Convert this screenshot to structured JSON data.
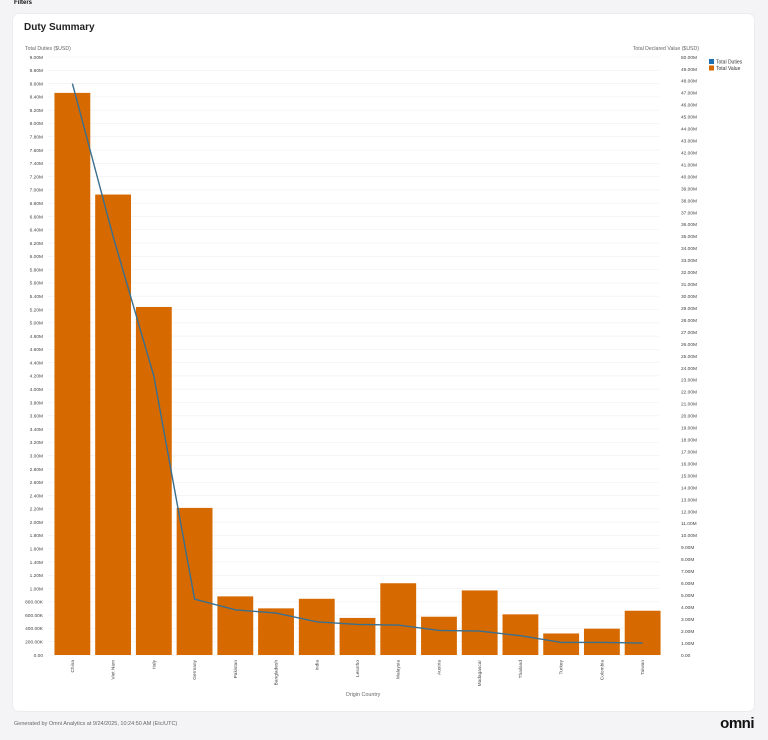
{
  "header": {
    "filters_label": "Filters"
  },
  "card": {
    "title": "Duty Summary"
  },
  "footer": {
    "generated_text": "Generated by Omni Analytics at 9/24/2025, 10:24:50 AM (Etc/UTC)",
    "logo_text": "omni"
  },
  "colors": {
    "bar": "#d66a00",
    "line": "#3a6f8f",
    "legend_duties": "#1f6fb3",
    "legend_value": "#d66a00"
  },
  "chart_data": {
    "type": "bar",
    "xlabel": "Origin Country",
    "ylabel_left": "Total Duties ($USD)",
    "ylabel_right": "Total Declared Value ($USD)",
    "left_ylim": [
      0,
      9000000
    ],
    "right_ylim": [
      0,
      50000000
    ],
    "left_ticks": [
      "0.00",
      "200.00K",
      "400.00K",
      "600.00K",
      "800.00K",
      "1.00M",
      "1.20M",
      "1.40M",
      "1.60M",
      "1.80M",
      "2.00M",
      "2.20M",
      "2.40M",
      "2.60M",
      "2.80M",
      "3.00M",
      "3.20M",
      "3.40M",
      "3.60M",
      "3.80M",
      "4.00M",
      "4.20M",
      "4.40M",
      "4.60M",
      "4.80M",
      "5.00M",
      "5.20M",
      "5.40M",
      "5.60M",
      "5.80M",
      "6.00M",
      "6.20M",
      "6.40M",
      "6.60M",
      "6.80M",
      "7.00M",
      "7.20M",
      "7.40M",
      "7.60M",
      "7.80M",
      "8.00M",
      "8.20M",
      "8.40M",
      "8.60M",
      "8.80M",
      "9.00M"
    ],
    "right_ticks": [
      "0.00",
      "1.00M",
      "2.00M",
      "3.00M",
      "4.00M",
      "5.00M",
      "6.00M",
      "7.00M",
      "8.00M",
      "9.00M",
      "10.00M",
      "11.00M",
      "12.00M",
      "13.00M",
      "14.00M",
      "15.00M",
      "16.00M",
      "17.00M",
      "18.00M",
      "19.00M",
      "20.00M",
      "21.00M",
      "22.00M",
      "23.00M",
      "24.00M",
      "25.00M",
      "26.00M",
      "27.00M",
      "28.00M",
      "29.00M",
      "30.00M",
      "31.00M",
      "32.00M",
      "33.00M",
      "34.00M",
      "35.00M",
      "36.00M",
      "37.00M",
      "38.00M",
      "39.00M",
      "40.00M",
      "41.00M",
      "42.00M",
      "43.00M",
      "44.00M",
      "45.00M",
      "46.00M",
      "47.00M",
      "48.00M",
      "49.00M",
      "50.00M"
    ],
    "categories": [
      "China",
      "Viet Nam",
      "Italy",
      "Germany",
      "Pakistan",
      "Bangladesh",
      "India",
      "Lesotho",
      "Malaysia",
      "Austria",
      "Madagascar",
      "Thailand",
      "Turkey",
      "Colombia",
      "Taiwan"
    ],
    "series": [
      {
        "name": "Total Value",
        "type": "bar",
        "axis": "right",
        "values": [
          47.0,
          38.5,
          29.1,
          12.3,
          4.9,
          3.9,
          4.7,
          3.1,
          6.0,
          3.2,
          5.4,
          3.4,
          1.8,
          2.2,
          3.7
        ]
      },
      {
        "name": "Total Duties",
        "type": "line",
        "axis": "left",
        "values": [
          8.6,
          6.3,
          4.2,
          0.84,
          0.68,
          0.63,
          0.5,
          0.46,
          0.45,
          0.37,
          0.36,
          0.29,
          0.19,
          0.19,
          0.18
        ]
      }
    ],
    "legend_position": "top-right",
    "grid": true
  }
}
